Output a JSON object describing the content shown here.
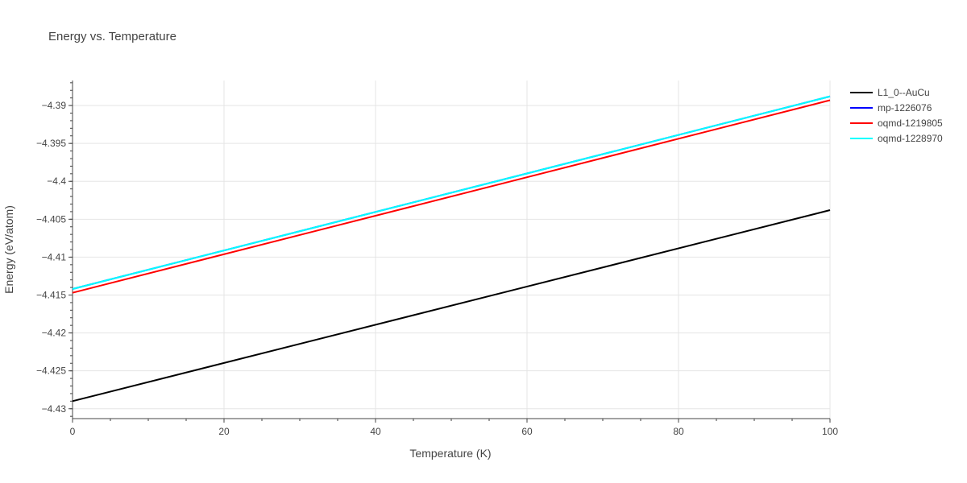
{
  "chart_data": {
    "type": "line",
    "title": "Energy vs. Temperature",
    "xlabel": "Temperature (K)",
    "ylabel": "Energy (eV/atom)",
    "xlim": [
      0,
      100
    ],
    "ylim": [
      -4.4313,
      -4.3867
    ],
    "x_ticks": [
      0,
      20,
      40,
      60,
      80,
      100
    ],
    "x_tick_labels": [
      "0",
      "20",
      "40",
      "60",
      "80",
      "100"
    ],
    "y_ticks": [
      -4.43,
      -4.425,
      -4.42,
      -4.415,
      -4.41,
      -4.405,
      -4.4,
      -4.395,
      -4.39
    ],
    "y_tick_labels": [
      "−4.43",
      "−4.425",
      "−4.42",
      "−4.415",
      "−4.41",
      "−4.405",
      "−4.4",
      "−4.395",
      "−4.39"
    ],
    "grid": true,
    "legend_position": "top-right",
    "series": [
      {
        "name": "L1_0--AuCu",
        "color": "#000000",
        "x": [
          0,
          100
        ],
        "y": [
          -4.429,
          -4.4038
        ]
      },
      {
        "name": "mp-1226076",
        "color": "#0000ff",
        "x": [
          0,
          100
        ],
        "y": [
          -4.4142,
          -4.3888
        ]
      },
      {
        "name": "oqmd-1219805",
        "color": "#ff0000",
        "x": [
          0,
          100
        ],
        "y": [
          -4.4147,
          -4.3893
        ]
      },
      {
        "name": "oqmd-1228970",
        "color": "#00ffff",
        "x": [
          0,
          100
        ],
        "y": [
          -4.4142,
          -4.3888
        ]
      }
    ]
  }
}
